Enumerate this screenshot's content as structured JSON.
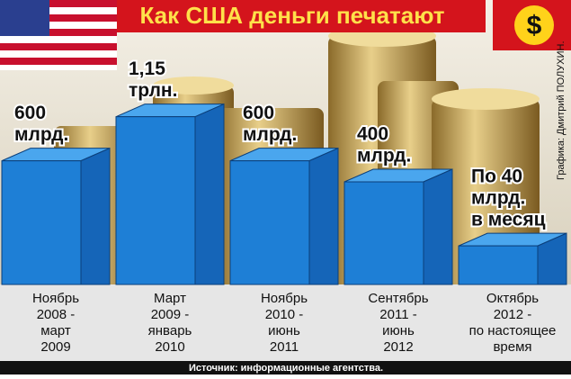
{
  "chart_data": {
    "type": "bar",
    "title": "Как США деньги печатают",
    "categories": [
      [
        "Ноябрь",
        "2008 -",
        "март",
        "2009"
      ],
      [
        "Март",
        "2009 -",
        "январь",
        "2010"
      ],
      [
        "Ноябрь",
        "2010 -",
        "июнь",
        "2011"
      ],
      [
        "Сентябрь",
        "2011 -",
        "июнь",
        "2012"
      ],
      [
        "Октябрь",
        "2012 -",
        "по настоящее",
        "время"
      ]
    ],
    "values": [
      600,
      1150,
      600,
      400,
      40
    ],
    "value_labels": [
      [
        "600",
        "млрд."
      ],
      [
        "1,15",
        "трлн."
      ],
      [
        "600",
        "млрд."
      ],
      [
        "400",
        "млрд."
      ],
      [
        "По 40",
        "млрд.",
        "в месяц"
      ]
    ],
    "color": "#1e7fd6",
    "source": "Источник: информационные агентства.",
    "credit": "Графика: Дмитрий ПОЛУХИН."
  }
}
